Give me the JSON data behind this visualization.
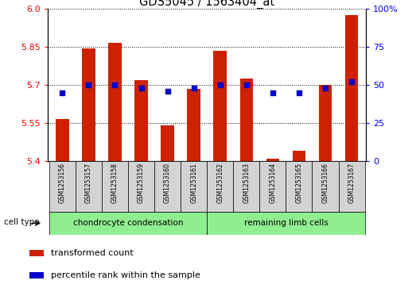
{
  "title": "GDS5045 / 1563404_at",
  "samples": [
    "GSM1253156",
    "GSM1253157",
    "GSM1253158",
    "GSM1253159",
    "GSM1253160",
    "GSM1253161",
    "GSM1253162",
    "GSM1253163",
    "GSM1253164",
    "GSM1253165",
    "GSM1253166",
    "GSM1253167"
  ],
  "red_values": [
    5.565,
    5.845,
    5.865,
    5.72,
    5.54,
    5.685,
    5.835,
    5.725,
    5.41,
    5.44,
    5.7,
    5.975
  ],
  "blue_percentiles": [
    45,
    50,
    50,
    48,
    46,
    48,
    50,
    50,
    45,
    45,
    48,
    52
  ],
  "y_min": 5.4,
  "y_max": 6.0,
  "y_ticks": [
    5.4,
    5.55,
    5.7,
    5.85,
    6.0
  ],
  "y_right_ticks": [
    0,
    25,
    50,
    75,
    100
  ],
  "bar_color": "#cc2200",
  "dot_color": "#0000cc",
  "bar_width": 0.5,
  "group1_label": "chondrocyte condensation",
  "group2_label": "remaining limb cells",
  "group1_count": 6,
  "cell_type_label": "cell type",
  "legend_red": "transformed count",
  "legend_blue": "percentile rank within the sample",
  "sample_box_color": "#d3d3d3",
  "group_bg_color": "#90ee90"
}
